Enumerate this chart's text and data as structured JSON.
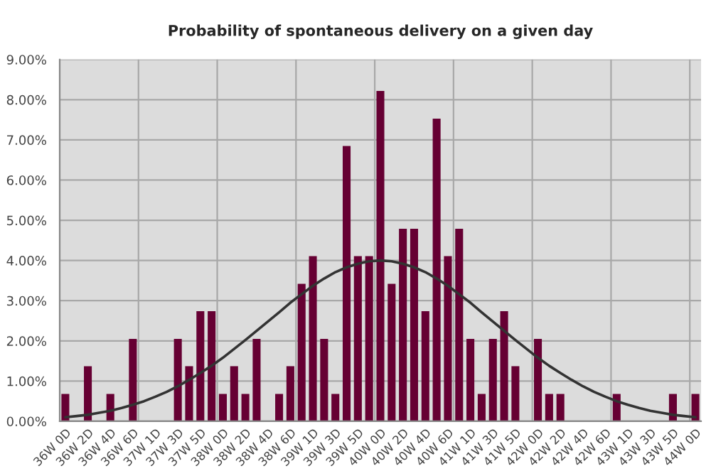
{
  "chart_data": {
    "type": "bar",
    "title": "Probability of spontaneous delivery on a given day",
    "categories": [
      "36W 0D",
      null,
      "36W 2D",
      null,
      "36W 4D",
      null,
      "36W 6D",
      null,
      "37W 1D",
      null,
      "37W 3D",
      null,
      "37W 5D",
      null,
      "38W 0D",
      null,
      "38W 2D",
      null,
      "38W 4D",
      null,
      "38W 6D",
      null,
      "39W 1D",
      null,
      "39W 3D",
      null,
      "39W 5D",
      null,
      "40W 0D",
      null,
      "40W 2D",
      null,
      "40W 4D",
      null,
      "40W 6D",
      null,
      "41W 1D",
      null,
      "41W 3D",
      null,
      "41W 5D",
      null,
      "42W 0D",
      null,
      "42W 2D",
      null,
      "42W 4D",
      null,
      "42W 6D",
      null,
      "43W 1D",
      null,
      "43W 3D",
      null,
      "43W 5D",
      null,
      "44W 0D"
    ],
    "series": [
      {
        "color": "#660033",
        "values": [
          0.68,
          0,
          1.37,
          0,
          0.68,
          0,
          2.05,
          0,
          0,
          0,
          2.05,
          1.37,
          2.74,
          2.74,
          0.68,
          1.37,
          0.68,
          2.05,
          0,
          0.68,
          1.37,
          3.42,
          4.11,
          2.05,
          0.68,
          6.85,
          4.11,
          4.11,
          8.22,
          3.42,
          4.79,
          4.79,
          2.74,
          7.53,
          4.11,
          4.79,
          2.05,
          0.68,
          2.05,
          2.74,
          1.37,
          0,
          2.05,
          0.68,
          0.68,
          0,
          0,
          0,
          0,
          0.68,
          0,
          0,
          0,
          0,
          0.68,
          0,
          0.68
        ]
      },
      {
        "type": "line",
        "color": "#333333",
        "values": [
          0.1,
          0.13,
          0.16,
          0.21,
          0.26,
          0.33,
          0.41,
          0.5,
          0.61,
          0.73,
          0.87,
          1.03,
          1.2,
          1.38,
          1.58,
          1.8,
          2.02,
          2.25,
          2.48,
          2.71,
          2.95,
          3.16,
          3.37,
          3.55,
          3.71,
          3.83,
          3.92,
          3.98,
          4.0,
          3.98,
          3.92,
          3.83,
          3.71,
          3.55,
          3.37,
          3.16,
          2.95,
          2.71,
          2.48,
          2.25,
          2.02,
          1.8,
          1.58,
          1.38,
          1.2,
          1.03,
          0.87,
          0.73,
          0.61,
          0.5,
          0.41,
          0.33,
          0.26,
          0.21,
          0.16,
          0.13,
          0.1
        ]
      }
    ],
    "ylim": [
      0,
      9
    ],
    "yticks": [
      {
        "value": 0,
        "label": "0.00%"
      },
      {
        "value": 1,
        "label": "1.00%"
      },
      {
        "value": 2,
        "label": "2.00%"
      },
      {
        "value": 3,
        "label": "3.00%"
      },
      {
        "value": 4,
        "label": "4.00%"
      },
      {
        "value": 5,
        "label": "5.00%"
      },
      {
        "value": 6,
        "label": "6.00%"
      },
      {
        "value": 7,
        "label": "7.00%"
      },
      {
        "value": 8,
        "label": "8.00%"
      },
      {
        "value": 9,
        "label": "9.00%"
      }
    ],
    "grid": true,
    "legend": false,
    "marker": "none",
    "line_style": "solid"
  }
}
